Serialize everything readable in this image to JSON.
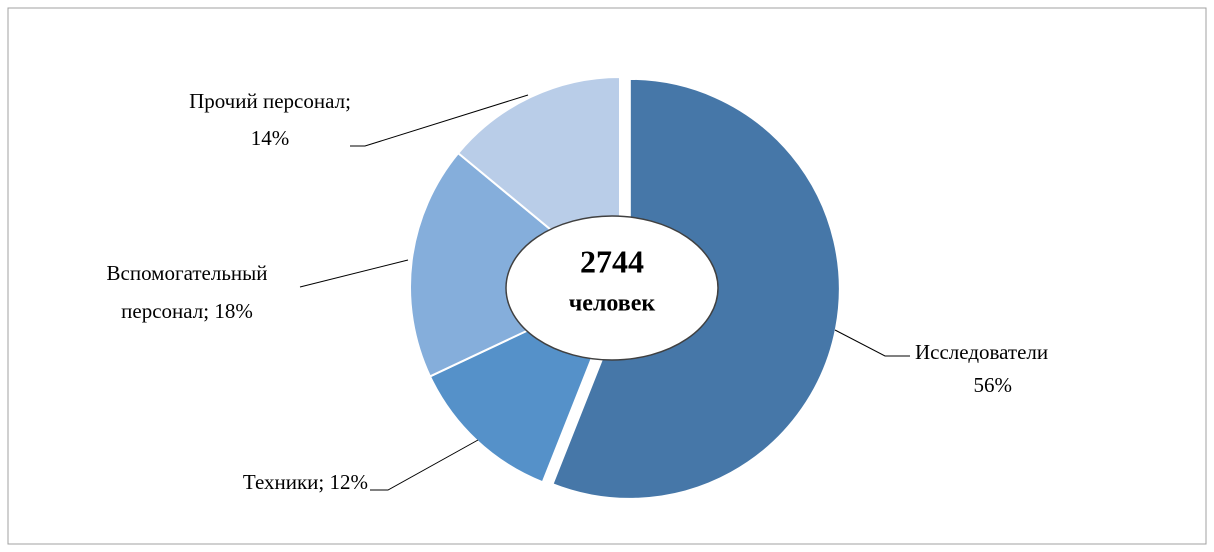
{
  "chart_data": {
    "type": "donut",
    "center_text": [
      "2744",
      "человек"
    ],
    "values": [
      56,
      12,
      18,
      14
    ],
    "value_labels": [
      [
        "Исследователи",
        "56%"
      ],
      [
        "Техники; 12%"
      ],
      [
        "Вспомогательный",
        "персонал; 18%"
      ],
      [
        "Прочий персонал;",
        "14%"
      ]
    ],
    "colors": [
      "#4677a8",
      "#5591c9",
      "#85aedb",
      "#b9cde8"
    ],
    "exploded": [
      0
    ]
  }
}
